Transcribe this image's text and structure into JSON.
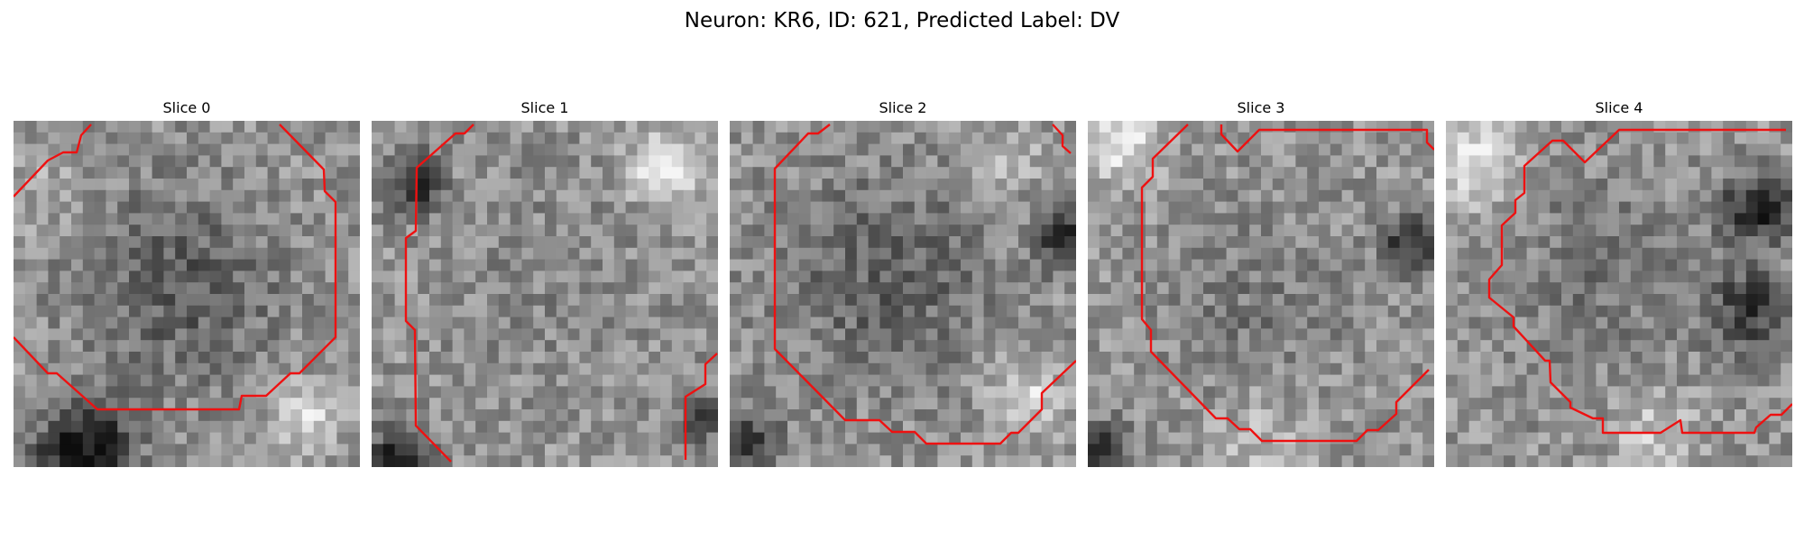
{
  "figure": {
    "title": "Neuron: KR6, ID: 621, Predicted Label: DV"
  },
  "panels": [
    {
      "title": "Slice 0"
    },
    {
      "title": "Slice 1"
    },
    {
      "title": "Slice 2"
    },
    {
      "title": "Slice 3"
    },
    {
      "title": "Slice 4"
    }
  ],
  "colors": {
    "contour": "#ee1111",
    "image_colormap": "gray"
  }
}
